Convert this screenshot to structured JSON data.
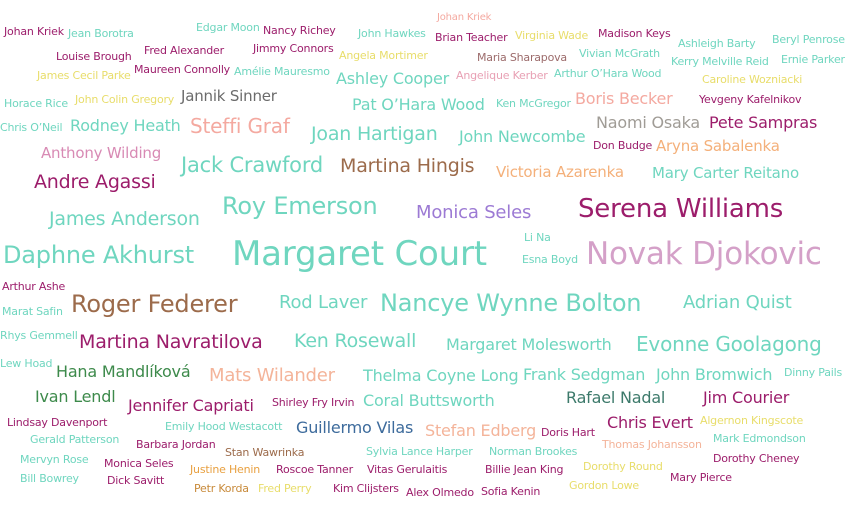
{
  "words": [
    {
      "text": "Johan Kriek",
      "color": "#9c1d6b"
    },
    {
      "text": "Jean Borotra",
      "color": "#6fd6bf"
    },
    {
      "text": "Edgar Moon",
      "color": "#6fd6bf"
    },
    {
      "text": "Nancy Richey",
      "color": "#9c1d6b"
    },
    {
      "text": "John Hawkes",
      "color": "#6fd6bf"
    },
    {
      "text": "Johan Kriek",
      "color": "#f4a9a0"
    },
    {
      "text": "Brian Teacher",
      "color": "#9c1d6b"
    },
    {
      "text": "Virginia Wade",
      "color": "#e8dd6a"
    },
    {
      "text": "Madison Keys",
      "color": "#9c1d6b"
    },
    {
      "text": "Beryl Penrose",
      "color": "#6fd6bf"
    },
    {
      "text": "Ashleigh Barty",
      "color": "#6fd6bf"
    },
    {
      "text": "Louise Brough",
      "color": "#9c1d6b"
    },
    {
      "text": "Fred Alexander",
      "color": "#9c1d6b"
    },
    {
      "text": "Jimmy Connors",
      "color": "#9c1d6b"
    },
    {
      "text": "Angela Mortimer",
      "color": "#e8dd6a"
    },
    {
      "text": "Maria Sharapova",
      "color": "#9c6b6b"
    },
    {
      "text": "Vivian McGrath",
      "color": "#6fd6bf"
    },
    {
      "text": "Kerry Melville Reid",
      "color": "#6fd6bf"
    },
    {
      "text": "Ernie Parker",
      "color": "#6fd6bf"
    },
    {
      "text": "James Cecil Parke",
      "color": "#e8dd6a"
    },
    {
      "text": "Maureen Connolly",
      "color": "#9c1d6b"
    },
    {
      "text": "Amélie Mauresmo",
      "color": "#6fd6bf"
    },
    {
      "text": "Ashley Cooper",
      "color": "#6fd6bf"
    },
    {
      "text": "Angelique Kerber",
      "color": "#e8a0b4"
    },
    {
      "text": "Arthur O’Hara Wood",
      "color": "#6fd6bf"
    },
    {
      "text": "Caroline Wozniacki",
      "color": "#e8dd6a"
    },
    {
      "text": "Horace Rice",
      "color": "#6fd6bf"
    },
    {
      "text": "John Colin Gregory",
      "color": "#e8dd6a"
    },
    {
      "text": "Jannik Sinner",
      "color": "#6b6b6b"
    },
    {
      "text": "Pat O’Hara Wood",
      "color": "#6fd6bf"
    },
    {
      "text": "Ken McGregor",
      "color": "#6fd6bf"
    },
    {
      "text": "Boris Becker",
      "color": "#f4a9a0"
    },
    {
      "text": "Yevgeny Kafelnikov",
      "color": "#9c1d6b"
    },
    {
      "text": "Chris O’Neil",
      "color": "#6fd6bf"
    },
    {
      "text": "Rodney Heath",
      "color": "#6fd6bf"
    },
    {
      "text": "Steffi Graf",
      "color": "#f4a9a0"
    },
    {
      "text": "Joan Hartigan",
      "color": "#6fd6bf"
    },
    {
      "text": "John Newcombe",
      "color": "#6fd6bf"
    },
    {
      "text": "Naomi Osaka",
      "color": "#a09c96"
    },
    {
      "text": "Pete Sampras",
      "color": "#9c1d6b"
    },
    {
      "text": "Don Budge",
      "color": "#9c1d6b"
    },
    {
      "text": "Aryna Sabalenka",
      "color": "#f4b07a"
    },
    {
      "text": "Anthony Wilding",
      "color": "#d88ab4"
    },
    {
      "text": "Jack Crawford",
      "color": "#6fd6bf"
    },
    {
      "text": "Martina Hingis",
      "color": "#9c6b4b"
    },
    {
      "text": "Victoria Azarenka",
      "color": "#f4b07a"
    },
    {
      "text": "Mary Carter Reitano",
      "color": "#6fd6bf"
    },
    {
      "text": "Andre Agassi",
      "color": "#9c1d6b"
    },
    {
      "text": "James Anderson",
      "color": "#6fd6bf"
    },
    {
      "text": "Roy Emerson",
      "color": "#6fd6bf"
    },
    {
      "text": "Monica Seles",
      "color": "#9c7ad4"
    },
    {
      "text": "Serena Williams",
      "color": "#9c1d6b"
    },
    {
      "text": "Li Na",
      "color": "#6fd6bf"
    },
    {
      "text": "Daphne Akhurst",
      "color": "#6fd6bf"
    },
    {
      "text": "Margaret Court",
      "color": "#6fd6bf"
    },
    {
      "text": "Esna Boyd",
      "color": "#6fd6bf"
    },
    {
      "text": "Novak Djokovic",
      "color": "#d4a0c8"
    },
    {
      "text": "Arthur Ashe",
      "color": "#9c1d6b"
    },
    {
      "text": "Marat Safin",
      "color": "#6fd6bf"
    },
    {
      "text": "Roger Federer",
      "color": "#9c6b4b"
    },
    {
      "text": "Rod Laver",
      "color": "#6fd6bf"
    },
    {
      "text": "Nancye Wynne Bolton",
      "color": "#6fd6bf"
    },
    {
      "text": "Adrian Quist",
      "color": "#6fd6bf"
    },
    {
      "text": "Rhys Gemmell",
      "color": "#6fd6bf"
    },
    {
      "text": "Martina Navratilova",
      "color": "#9c1d6b"
    },
    {
      "text": "Ken Rosewall",
      "color": "#6fd6bf"
    },
    {
      "text": "Margaret Molesworth",
      "color": "#6fd6bf"
    },
    {
      "text": "Evonne Goolagong",
      "color": "#6fd6bf"
    },
    {
      "text": "Lew Hoad",
      "color": "#6fd6bf"
    },
    {
      "text": "Hana Mandlíková",
      "color": "#3d8a4b"
    },
    {
      "text": "Mats Wilander",
      "color": "#f4b49a"
    },
    {
      "text": "Thelma Coyne Long",
      "color": "#6fd6bf"
    },
    {
      "text": "Frank Sedgman",
      "color": "#6fd6bf"
    },
    {
      "text": "John Bromwich",
      "color": "#6fd6bf"
    },
    {
      "text": "Dinny Pails",
      "color": "#6fd6bf"
    },
    {
      "text": "Ivan Lendl",
      "color": "#3d8a4b"
    },
    {
      "text": "Jennifer Capriati",
      "color": "#9c1d6b"
    },
    {
      "text": "Shirley Fry Irvin",
      "color": "#9c1d6b"
    },
    {
      "text": "Coral Buttsworth",
      "color": "#6fd6bf"
    },
    {
      "text": "Rafael Nadal",
      "color": "#3d7a6b"
    },
    {
      "text": "Jim Courier",
      "color": "#9c1d6b"
    },
    {
      "text": "Lindsay Davenport",
      "color": "#9c1d6b"
    },
    {
      "text": "Emily Hood Westacott",
      "color": "#6fd6bf"
    },
    {
      "text": "Guillermo Vilas",
      "color": "#3d6b9c"
    },
    {
      "text": "Stefan Edberg",
      "color": "#f4b49a"
    },
    {
      "text": "Doris Hart",
      "color": "#9c1d6b"
    },
    {
      "text": "Chris Evert",
      "color": "#9c1d6b"
    },
    {
      "text": "Algernon Kingscote",
      "color": "#e8dd6a"
    },
    {
      "text": "Gerald Patterson",
      "color": "#6fd6bf"
    },
    {
      "text": "Barbara Jordan",
      "color": "#9c1d6b"
    },
    {
      "text": "Thomas Johansson",
      "color": "#f4b49a"
    },
    {
      "text": "Mark Edmondson",
      "color": "#6fd6bf"
    },
    {
      "text": "Mervyn Rose",
      "color": "#6fd6bf"
    },
    {
      "text": "Stan Wawrinka",
      "color": "#9c6b4b"
    },
    {
      "text": "Sylvia Lance Harper",
      "color": "#6fd6bf"
    },
    {
      "text": "Norman Brookes",
      "color": "#6fd6bf"
    },
    {
      "text": "Monica Seles",
      "color": "#9c1d6b"
    },
    {
      "text": "Justine Henin",
      "color": "#e8a040"
    },
    {
      "text": "Roscoe Tanner",
      "color": "#9c1d6b"
    },
    {
      "text": "Vitas Gerulaitis",
      "color": "#9c1d6b"
    },
    {
      "text": "Billie Jean King",
      "color": "#9c1d6b"
    },
    {
      "text": "Dorothy Round",
      "color": "#e8dd6a"
    },
    {
      "text": "Dorothy Cheney",
      "color": "#9c1d6b"
    },
    {
      "text": "Bill Bowrey",
      "color": "#6fd6bf"
    },
    {
      "text": "Dick Savitt",
      "color": "#9c1d6b"
    },
    {
      "text": "Petr Korda",
      "color": "#c88a3a"
    },
    {
      "text": "Fred Perry",
      "color": "#e8dd6a"
    },
    {
      "text": "Kim Clijsters",
      "color": "#9c1d6b"
    },
    {
      "text": "Alex Olmedo",
      "color": "#9c1d6b"
    },
    {
      "text": "Sofia Kenin",
      "color": "#9c1d6b"
    },
    {
      "text": "Gordon Lowe",
      "color": "#e8dd6a"
    },
    {
      "text": "Mary Pierce",
      "color": "#9c1d6b"
    }
  ]
}
